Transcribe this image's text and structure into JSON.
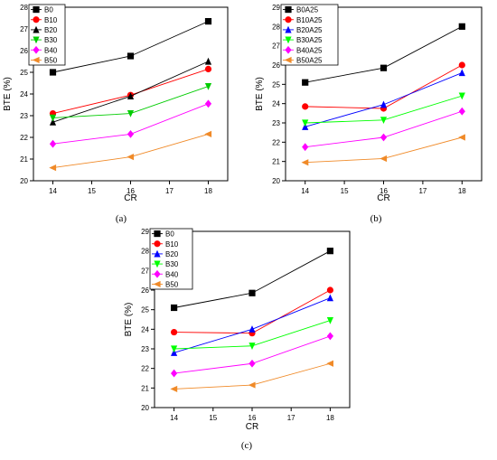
{
  "chart_data": [
    {
      "type": "line",
      "panel_label": "(a)",
      "xlabel": "CR",
      "ylabel": "BTE (%)",
      "x": [
        14,
        16,
        18
      ],
      "xlim": [
        13.5,
        18.5
      ],
      "ylim": [
        20,
        28
      ],
      "xticks": [
        "14",
        "15",
        "16",
        "17",
        "18"
      ],
      "yticks": [
        "20",
        "21",
        "22",
        "23",
        "24",
        "25",
        "26",
        "27",
        "28"
      ],
      "legend_position": "top-left",
      "grid": false,
      "series": [
        {
          "name": "B0",
          "marker": "square",
          "color": "#000000",
          "values": [
            25.0,
            25.75,
            27.35
          ]
        },
        {
          "name": "B10",
          "marker": "circle",
          "color": "#ff0000",
          "values": [
            23.1,
            23.95,
            25.15
          ]
        },
        {
          "name": "B20",
          "marker": "triangle-up",
          "color": "#000000",
          "values": [
            22.7,
            23.9,
            25.5
          ]
        },
        {
          "name": "B30",
          "marker": "triangle-down",
          "color": "#00cc00",
          "values": [
            22.9,
            23.1,
            24.35
          ]
        },
        {
          "name": "B40",
          "marker": "diamond",
          "color": "#ff00ff",
          "values": [
            21.7,
            22.15,
            23.55
          ]
        },
        {
          "name": "B50",
          "marker": "triangle-left",
          "color": "#f08a28",
          "values": [
            20.6,
            21.1,
            22.15
          ]
        }
      ]
    },
    {
      "type": "line",
      "panel_label": "(b)",
      "xlabel": "CR",
      "ylabel": "BTE (%)",
      "x": [
        14,
        16,
        18
      ],
      "xlim": [
        13.5,
        18.5
      ],
      "ylim": [
        20,
        29
      ],
      "xticks": [
        "14",
        "15",
        "16",
        "17",
        "18"
      ],
      "yticks": [
        "20",
        "21",
        "22",
        "23",
        "24",
        "25",
        "26",
        "27",
        "28",
        "29"
      ],
      "legend_position": "top-left",
      "grid": false,
      "series": [
        {
          "name": "B0A25",
          "marker": "square",
          "color": "#000000",
          "values": [
            25.1,
            25.85,
            28.0
          ]
        },
        {
          "name": "B10A25",
          "marker": "circle",
          "color": "#ff0000",
          "values": [
            23.85,
            23.75,
            26.0
          ]
        },
        {
          "name": "B20A25",
          "marker": "triangle-up",
          "color": "#0000ff",
          "values": [
            22.8,
            23.95,
            25.6
          ]
        },
        {
          "name": "B30A25",
          "marker": "triangle-down",
          "color": "#00ff00",
          "values": [
            23.0,
            23.15,
            24.4
          ]
        },
        {
          "name": "B40A25",
          "marker": "diamond",
          "color": "#ff00ff",
          "values": [
            21.75,
            22.25,
            23.6
          ]
        },
        {
          "name": "B50A25",
          "marker": "triangle-left",
          "color": "#f08a28",
          "values": [
            20.95,
            21.15,
            22.25
          ]
        }
      ]
    },
    {
      "type": "line",
      "panel_label": "(c)",
      "xlabel": "CR",
      "ylabel": "BTE (%)",
      "x": [
        14,
        16,
        18
      ],
      "xlim": [
        13.5,
        18.5
      ],
      "ylim": [
        20,
        29
      ],
      "xticks": [
        "14",
        "15",
        "16",
        "17",
        "18"
      ],
      "yticks": [
        "20",
        "21",
        "22",
        "23",
        "24",
        "25",
        "26",
        "27",
        "28",
        "29"
      ],
      "legend_position": "top-left",
      "grid": false,
      "series": [
        {
          "name": "B0",
          "marker": "square",
          "color": "#000000",
          "values": [
            25.1,
            25.85,
            28.0
          ]
        },
        {
          "name": "B10",
          "marker": "circle",
          "color": "#ff0000",
          "values": [
            23.85,
            23.8,
            26.0
          ]
        },
        {
          "name": "B20",
          "marker": "triangle-up",
          "color": "#0000ff",
          "values": [
            22.8,
            24.0,
            25.6
          ]
        },
        {
          "name": "B30",
          "marker": "triangle-down",
          "color": "#00ff00",
          "values": [
            23.0,
            23.15,
            24.45
          ]
        },
        {
          "name": "B40",
          "marker": "diamond",
          "color": "#ff00ff",
          "values": [
            21.75,
            22.25,
            23.65
          ]
        },
        {
          "name": "B50",
          "marker": "triangle-left",
          "color": "#f08a28",
          "values": [
            20.95,
            21.15,
            22.25
          ]
        }
      ]
    }
  ]
}
